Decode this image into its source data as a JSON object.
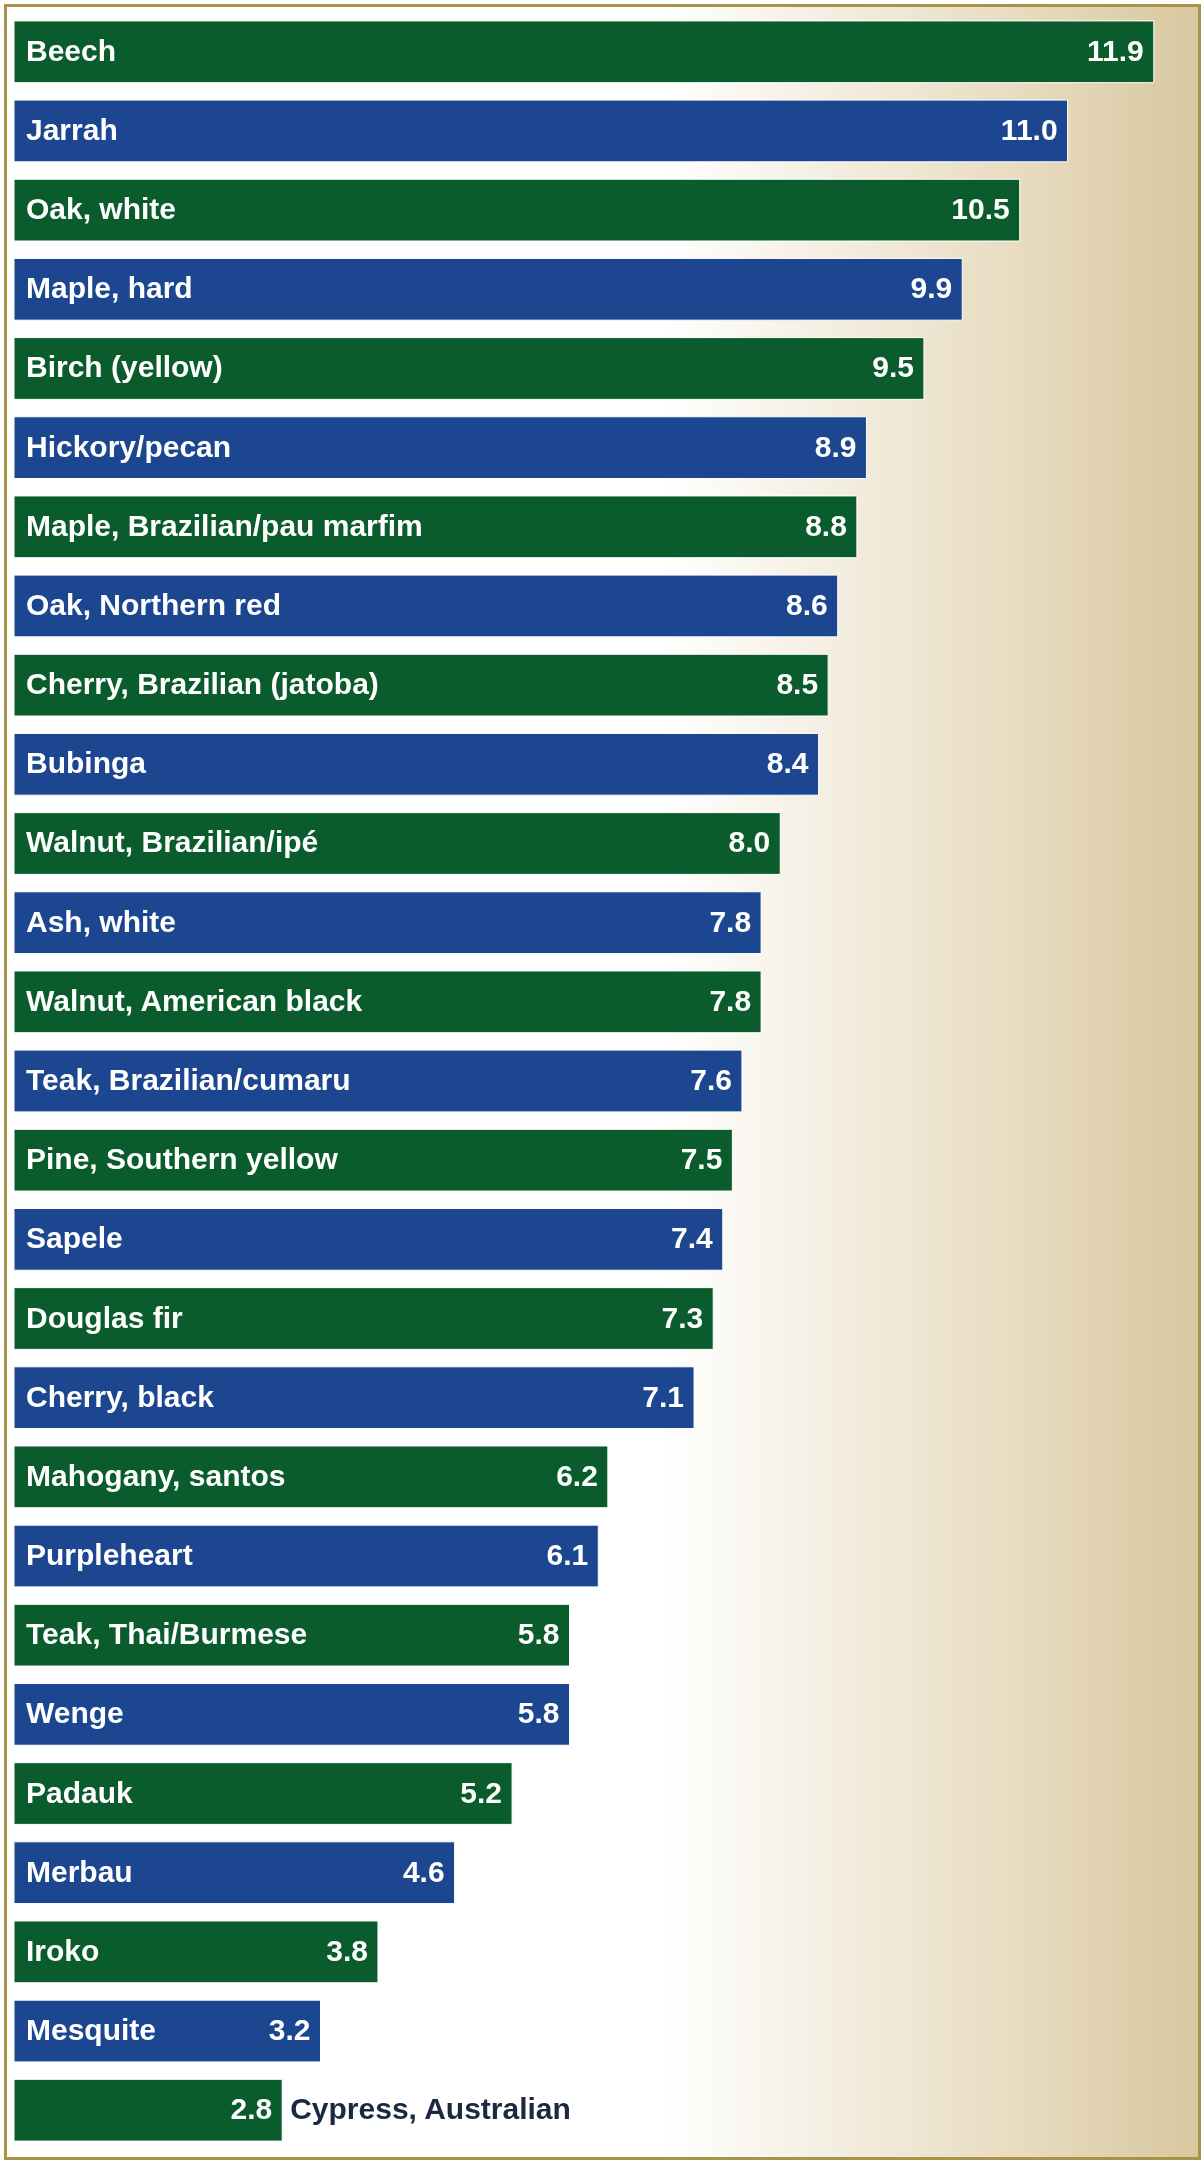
{
  "chart_data": {
    "type": "bar",
    "orientation": "horizontal",
    "value_labels": [
      "11.9",
      "11.0",
      "10.5",
      "9.9",
      "9.5",
      "8.9",
      "8.8",
      "8.6",
      "8.5",
      "8.4",
      "8.0",
      "7.8",
      "7.8",
      "7.6",
      "7.5",
      "7.4",
      "7.3",
      "7.1",
      "6.2",
      "6.1",
      "5.8",
      "5.8",
      "5.2",
      "4.6",
      "3.8",
      "3.2",
      "2.8"
    ],
    "categories": [
      "Beech",
      "Jarrah",
      "Oak, white",
      "Maple, hard",
      "Birch (yellow)",
      "Hickory/pecan",
      "Maple, Brazilian/pau marfim",
      "Oak, Northern red",
      "Cherry, Brazilian (jatoba)",
      "Bubinga",
      "Walnut, Brazilian/ipé",
      "Ash, white",
      "Walnut, American black",
      "Teak, Brazilian/cumaru",
      "Pine, Southern yellow",
      "Sapele",
      "Douglas fir",
      "Cherry, black",
      "Mahogany, santos",
      "Purpleheart",
      "Teak, Thai/Burmese",
      "Wenge",
      "Padauk",
      "Merbau",
      "Iroko",
      "Mesquite",
      "Cypress, Australian"
    ],
    "values": [
      11.9,
      11.0,
      10.5,
      9.9,
      9.5,
      8.9,
      8.8,
      8.6,
      8.5,
      8.4,
      8.0,
      7.8,
      7.8,
      7.6,
      7.5,
      7.4,
      7.3,
      7.1,
      6.2,
      6.1,
      5.8,
      5.8,
      5.2,
      4.6,
      3.8,
      3.2,
      2.8
    ],
    "colors": [
      "#0b5c2c",
      "#1c4690",
      "#0b5c2c",
      "#1c4690",
      "#0b5c2c",
      "#1c4690",
      "#0b5c2c",
      "#1c4690",
      "#0b5c2c",
      "#1c4690",
      "#0b5c2c",
      "#1c4690",
      "#0b5c2c",
      "#1c4690",
      "#0b5c2c",
      "#1c4690",
      "#0b5c2c",
      "#1c4690",
      "#0b5c2c",
      "#1c4690",
      "#0b5c2c",
      "#1c4690",
      "#0b5c2c",
      "#1c4690",
      "#0b5c2c",
      "#1c4690",
      "#0b5c2c"
    ]
  }
}
